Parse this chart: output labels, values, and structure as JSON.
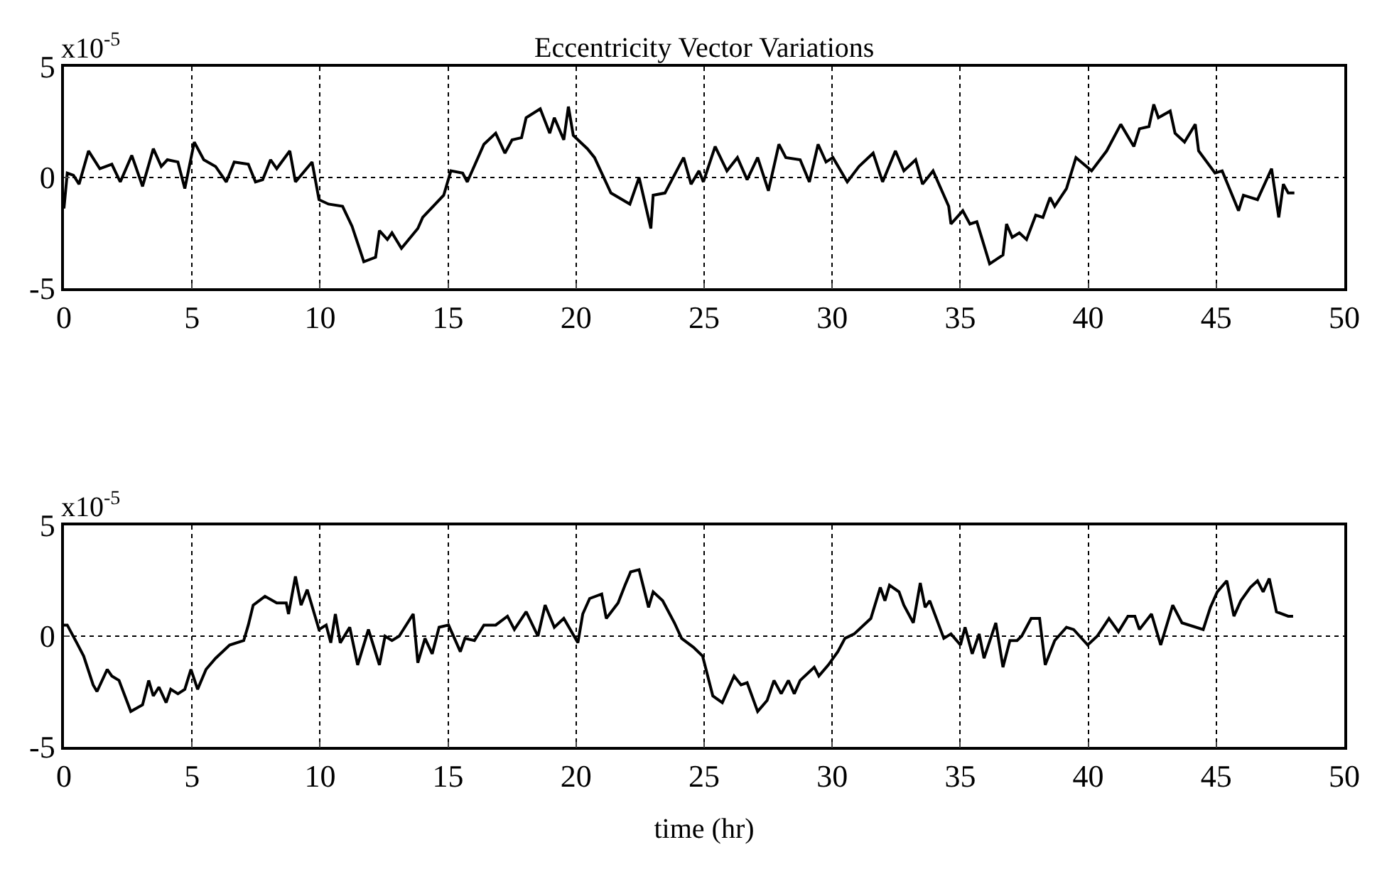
{
  "chart_data": [
    {
      "type": "line",
      "title": "Eccentricity Vector Variations",
      "annotations": [
        "x10$^{-5}$"
      ],
      "xlim": [
        0,
        50
      ],
      "ylim": [
        -5,
        5
      ],
      "xticks": [
        0,
        5,
        10,
        15,
        20,
        25,
        30,
        35,
        40,
        45,
        50
      ],
      "yticks": [
        -5,
        0,
        5
      ],
      "grid": true,
      "line_style": "solid",
      "x": [
        0,
        0.13,
        0.37,
        0.59,
        0.96,
        1.4,
        1.87,
        2.2,
        2.65,
        3.07,
        3.49,
        3.8,
        4.04,
        4.45,
        4.72,
        5.09,
        5.46,
        5.92,
        6.34,
        6.65,
        7.2,
        7.48,
        7.76,
        8.07,
        8.31,
        8.82,
        9.04,
        9.69,
        9.96,
        10.33,
        10.88,
        11.25,
        11.71,
        12.17,
        12.32,
        12.63,
        12.81,
        13.18,
        13.82,
        14.01,
        14.83,
        15.11,
        15.57,
        15.75,
        16.4,
        16.86,
        17.22,
        17.5,
        17.87,
        18.05,
        18.6,
        18.97,
        19.15,
        19.52,
        19.7,
        19.89,
        20.44,
        20.72,
        21.36,
        22.1,
        22.46,
        22.92,
        23.01,
        23.47,
        24.2,
        24.49,
        24.8,
        24.97,
        25.43,
        25.89,
        26.3,
        26.68,
        27.09,
        27.51,
        27.92,
        28.19,
        28.75,
        29.11,
        29.45,
        29.76,
        30.03,
        30.59,
        31.05,
        31.6,
        31.97,
        32.47,
        32.8,
        33.26,
        33.53,
        33.94,
        34.55,
        34.64,
        35.1,
        35.38,
        35.65,
        36.15,
        36.67,
        36.81,
        37.03,
        37.31,
        37.59,
        37.95,
        38.23,
        38.51,
        38.69,
        39.15,
        39.52,
        40.13,
        40.72,
        41.27,
        41.78,
        42.0,
        42.37,
        42.56,
        42.74,
        43.2,
        43.39,
        43.76,
        44.18,
        44.31,
        44.95,
        45.23,
        45.87,
        46.06,
        46.61,
        47.16,
        47.44,
        47.62,
        47.81,
        48.05
      ],
      "series": [
        {
          "color": "#000000",
          "values": [
            -1.4,
            0.2,
            0.1,
            -0.3,
            1.2,
            0.4,
            0.6,
            -0.2,
            1.0,
            -0.4,
            1.3,
            0.5,
            0.8,
            0.7,
            -0.5,
            1.6,
            0.8,
            0.5,
            -0.2,
            0.7,
            0.6,
            -0.2,
            -0.1,
            0.8,
            0.4,
            1.2,
            -0.2,
            0.7,
            -1.0,
            -1.2,
            -1.3,
            -2.2,
            -3.8,
            -3.6,
            -2.4,
            -2.8,
            -2.5,
            -3.2,
            -2.3,
            -1.8,
            -0.8,
            0.3,
            0.2,
            -0.2,
            1.5,
            2.0,
            1.1,
            1.7,
            1.8,
            2.7,
            3.1,
            2.0,
            2.7,
            1.7,
            3.2,
            1.9,
            1.3,
            0.9,
            -0.7,
            -1.2,
            0.0,
            -2.3,
            -0.8,
            -0.7,
            0.9,
            -0.3,
            0.3,
            -0.2,
            1.4,
            0.3,
            0.9,
            -0.1,
            0.9,
            -0.6,
            1.5,
            0.9,
            0.8,
            -0.2,
            1.5,
            0.7,
            0.9,
            -0.2,
            0.5,
            1.1,
            -0.2,
            1.2,
            0.3,
            0.8,
            -0.3,
            0.3,
            -1.3,
            -2.1,
            -1.5,
            -2.1,
            -2.0,
            -3.9,
            -3.5,
            -2.1,
            -2.7,
            -2.5,
            -2.8,
            -1.7,
            -1.8,
            -0.9,
            -1.3,
            -0.5,
            0.9,
            0.3,
            1.2,
            2.4,
            1.4,
            2.2,
            2.3,
            3.3,
            2.7,
            3.0,
            2.0,
            1.6,
            2.4,
            1.2,
            0.2,
            0.3,
            -1.5,
            -0.8,
            -1.0,
            0.4,
            -1.8,
            -0.3,
            -0.7,
            -0.7
          ]
        }
      ]
    },
    {
      "type": "line",
      "xlabel": "time (hr)",
      "annotations": [
        "x10$^{-5}$"
      ],
      "xlim": [
        0,
        50
      ],
      "ylim": [
        -5,
        5
      ],
      "xticks": [
        0,
        5,
        10,
        15,
        20,
        25,
        30,
        35,
        40,
        45,
        50
      ],
      "yticks": [
        -5,
        0,
        5
      ],
      "grid": true,
      "line_style": "solid",
      "x": [
        0,
        0.13,
        0.5,
        0.77,
        1.14,
        1.29,
        1.69,
        1.87,
        2.15,
        2.61,
        3.07,
        3.31,
        3.49,
        3.71,
        3.99,
        4.17,
        4.45,
        4.72,
        4.96,
        5.22,
        5.55,
        5.92,
        6.47,
        7.02,
        7.2,
        7.39,
        7.85,
        8.31,
        8.68,
        8.77,
        9.04,
        9.26,
        9.5,
        9.78,
        9.96,
        10.24,
        10.42,
        10.6,
        10.79,
        11.16,
        11.47,
        11.89,
        12.32,
        12.54,
        12.81,
        13.09,
        13.64,
        13.82,
        14.1,
        14.38,
        14.65,
        15.02,
        15.48,
        15.66,
        16.03,
        16.4,
        16.86,
        17.32,
        17.59,
        18.05,
        18.51,
        18.79,
        19.15,
        19.52,
        20.07,
        20.26,
        20.53,
        21.0,
        21.18,
        21.64,
        21.91,
        22.13,
        22.46,
        22.83,
        23.01,
        23.38,
        23.84,
        24.12,
        24.58,
        24.94,
        25.34,
        25.71,
        26.17,
        26.44,
        26.68,
        27.09,
        27.46,
        27.73,
        28.01,
        28.29,
        28.52,
        28.75,
        29.3,
        29.48,
        29.85,
        30.22,
        30.5,
        30.86,
        31.51,
        31.88,
        32.06,
        32.24,
        32.61,
        32.8,
        33.17,
        33.44,
        33.63,
        33.81,
        34.36,
        34.64,
        35.01,
        35.19,
        35.47,
        35.74,
        35.93,
        36.39,
        36.67,
        36.94,
        37.22,
        37.4,
        37.77,
        38.1,
        38.32,
        38.69,
        39.15,
        39.43,
        39.98,
        40.35,
        40.81,
        41.18,
        41.55,
        41.82,
        42.0,
        42.47,
        42.83,
        43.3,
        43.66,
        44.49,
        44.77,
        45.04,
        45.41,
        45.69,
        45.96,
        46.33,
        46.61,
        46.83,
        47.07,
        47.35,
        47.81,
        48.0
      ],
      "series": [
        {
          "color": "#000000",
          "values": [
            0.5,
            0.5,
            -0.3,
            -0.9,
            -2.2,
            -2.5,
            -1.5,
            -1.8,
            -2.0,
            -3.4,
            -3.1,
            -2.0,
            -2.7,
            -2.3,
            -3.0,
            -2.4,
            -2.6,
            -2.4,
            -1.5,
            -2.4,
            -1.5,
            -1.0,
            -0.4,
            -0.2,
            0.5,
            1.4,
            1.8,
            1.5,
            1.5,
            1.0,
            2.7,
            1.4,
            2.1,
            1.0,
            0.3,
            0.5,
            -0.3,
            1.0,
            -0.3,
            0.4,
            -1.3,
            0.3,
            -1.3,
            0.0,
            -0.2,
            0.0,
            1.0,
            -1.2,
            -0.1,
            -0.8,
            0.4,
            0.5,
            -0.7,
            -0.1,
            -0.2,
            0.5,
            0.5,
            0.9,
            0.3,
            1.1,
            0.0,
            1.4,
            0.4,
            0.8,
            -0.3,
            1.0,
            1.7,
            1.9,
            0.8,
            1.5,
            2.3,
            2.9,
            3.0,
            1.3,
            2.0,
            1.6,
            0.6,
            -0.1,
            -0.5,
            -0.9,
            -2.7,
            -3.0,
            -1.8,
            -2.2,
            -2.1,
            -3.4,
            -2.9,
            -2.0,
            -2.6,
            -2.0,
            -2.6,
            -2.0,
            -1.4,
            -1.8,
            -1.3,
            -0.7,
            -0.1,
            0.1,
            0.8,
            2.2,
            1.6,
            2.3,
            2.0,
            1.4,
            0.6,
            2.4,
            1.3,
            1.6,
            -0.1,
            0.1,
            -0.4,
            0.4,
            -0.8,
            0.1,
            -1.0,
            0.6,
            -1.4,
            -0.2,
            -0.2,
            0.0,
            0.8,
            0.8,
            -1.3,
            -0.2,
            0.4,
            0.3,
            -0.4,
            0.0,
            0.8,
            0.2,
            0.9,
            0.9,
            0.3,
            1.0,
            -0.4,
            1.4,
            0.6,
            0.3,
            1.3,
            2.0,
            2.5,
            0.9,
            1.6,
            2.2,
            2.5,
            2.0,
            2.6,
            1.1,
            0.9,
            0.9
          ]
        }
      ]
    }
  ]
}
